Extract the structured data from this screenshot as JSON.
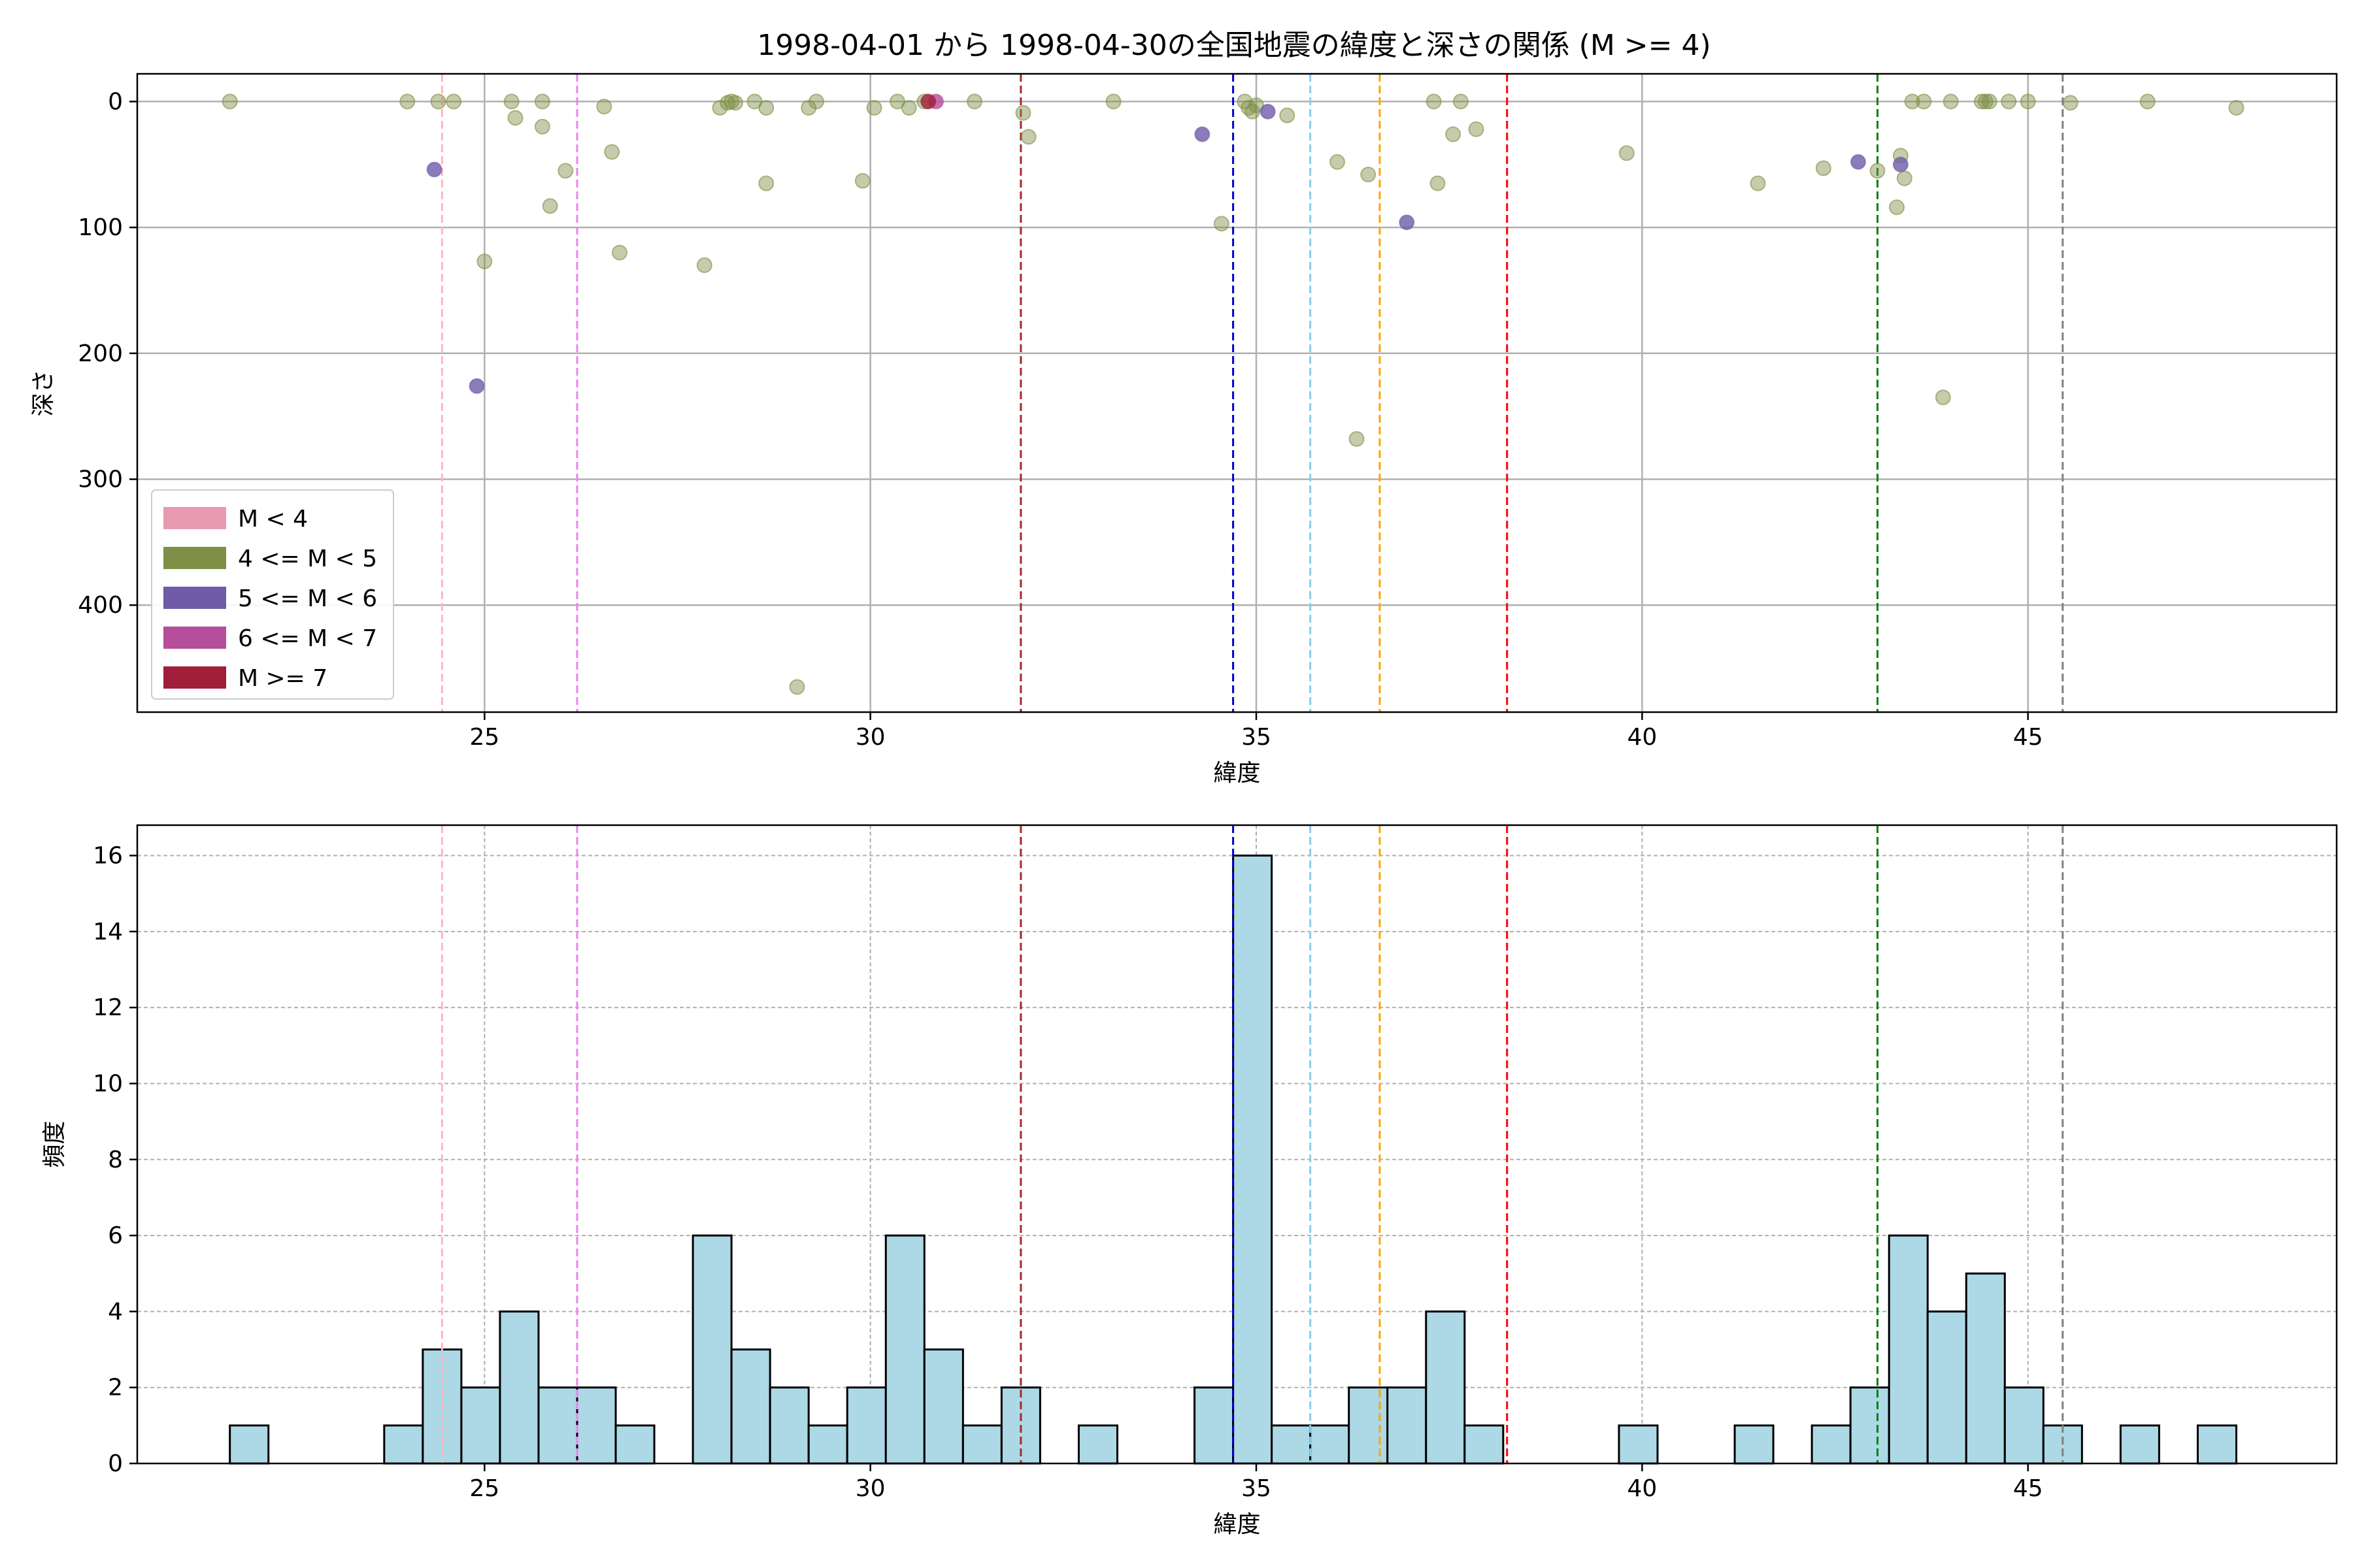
{
  "title": "1998-04-01 から 1998-04-30の全国地震の緯度と深さの関係 (M >= 4)",
  "colors": {
    "scatter_m4_5": "#7f8f45",
    "scatter_m5_6": "#6f5ba7",
    "scatter_m6_7": "#b54e9b",
    "scatter_m7": "#a01e3a",
    "hist_bar": "#add8e6",
    "vlines": [
      "#ffb6c1",
      "#ee82ee",
      "#a52a2a",
      "#0000cd",
      "#87ceeb",
      "#ffa500",
      "#ff0000",
      "#008000",
      "#808080"
    ]
  },
  "chart_data": [
    {
      "type": "scatter",
      "xlabel": "緯度",
      "ylabel": "深さ",
      "xlim": [
        20.5,
        49
      ],
      "ylim": [
        485,
        -22
      ],
      "y_inverted": true,
      "xticks": [
        25,
        30,
        35,
        40,
        45
      ],
      "yticks": [
        0,
        100,
        200,
        300,
        400
      ],
      "grid": true,
      "legend_position": "lower-left",
      "legend": [
        {
          "label": "M < 4",
          "color": "#e89ab0"
        },
        {
          "label": "4 <= M < 5",
          "color": "#7f8f45"
        },
        {
          "label": "5 <= M < 6",
          "color": "#6f5ba7"
        },
        {
          "label": "6 <= M < 7",
          "color": "#b54e9b"
        },
        {
          "label": "M >= 7",
          "color": "#a01e3a"
        }
      ],
      "vlines": [
        24.45,
        26.2,
        31.95,
        34.7,
        35.7,
        36.6,
        38.25,
        43.05,
        45.45
      ],
      "series": [
        {
          "class": "m4_5",
          "points": [
            [
              21.7,
              0
            ],
            [
              24.0,
              0
            ],
            [
              24.4,
              0
            ],
            [
              24.6,
              0
            ],
            [
              25.0,
              127
            ],
            [
              25.35,
              0
            ],
            [
              25.4,
              13
            ],
            [
              25.75,
              0
            ],
            [
              25.75,
              20
            ],
            [
              25.85,
              83
            ],
            [
              26.05,
              55
            ],
            [
              26.55,
              4
            ],
            [
              26.65,
              40
            ],
            [
              26.75,
              120
            ],
            [
              27.85,
              130
            ],
            [
              28.05,
              5
            ],
            [
              28.15,
              1
            ],
            [
              28.2,
              0
            ],
            [
              28.25,
              1
            ],
            [
              28.5,
              0
            ],
            [
              28.65,
              5
            ],
            [
              28.65,
              65
            ],
            [
              29.05,
              465
            ],
            [
              29.2,
              5
            ],
            [
              29.3,
              0
            ],
            [
              29.9,
              63
            ],
            [
              30.05,
              5
            ],
            [
              30.35,
              0
            ],
            [
              30.5,
              5
            ],
            [
              30.7,
              0
            ],
            [
              31.35,
              0
            ],
            [
              31.98,
              9
            ],
            [
              32.05,
              28
            ],
            [
              33.15,
              0
            ],
            [
              34.55,
              97
            ],
            [
              34.85,
              0
            ],
            [
              34.9,
              5
            ],
            [
              34.95,
              8
            ],
            [
              35.0,
              3
            ],
            [
              35.4,
              11
            ],
            [
              36.05,
              48
            ],
            [
              36.3,
              268
            ],
            [
              36.45,
              58
            ],
            [
              37.3,
              0
            ],
            [
              37.35,
              65
            ],
            [
              37.55,
              26
            ],
            [
              37.65,
              0
            ],
            [
              37.85,
              22
            ],
            [
              39.8,
              41
            ],
            [
              41.5,
              65
            ],
            [
              42.35,
              53
            ],
            [
              43.05,
              55
            ],
            [
              43.3,
              84
            ],
            [
              43.35,
              43
            ],
            [
              43.4,
              61
            ],
            [
              43.5,
              0
            ],
            [
              43.65,
              0
            ],
            [
              43.9,
              235
            ],
            [
              44.0,
              0
            ],
            [
              44.4,
              0
            ],
            [
              44.45,
              0
            ],
            [
              44.5,
              0
            ],
            [
              44.75,
              0
            ],
            [
              45.0,
              0
            ],
            [
              45.55,
              1
            ],
            [
              46.55,
              0
            ],
            [
              47.7,
              5
            ]
          ]
        },
        {
          "class": "m5_6",
          "points": [
            [
              24.35,
              54
            ],
            [
              24.9,
              226
            ],
            [
              34.3,
              26
            ],
            [
              35.15,
              8
            ],
            [
              36.95,
              96
            ],
            [
              42.8,
              48
            ],
            [
              43.35,
              50
            ]
          ]
        },
        {
          "class": "m6_7",
          "points": [
            [
              30.85,
              0
            ]
          ]
        },
        {
          "class": "m7",
          "points": [
            [
              30.75,
              0
            ]
          ]
        }
      ]
    },
    {
      "type": "bar",
      "xlabel": "緯度",
      "ylabel": "頻度",
      "xlim": [
        20.5,
        49
      ],
      "ylim": [
        0,
        16.8
      ],
      "xticks": [
        25,
        30,
        35,
        40,
        45
      ],
      "yticks": [
        0,
        2,
        4,
        6,
        8,
        10,
        12,
        14,
        16
      ],
      "grid": "dashed",
      "bin_start": 21.7,
      "bin_width": 0.5,
      "values": [
        1,
        0,
        0,
        0,
        1,
        3,
        2,
        4,
        2,
        2,
        1,
        0,
        6,
        3,
        2,
        1,
        2,
        6,
        3,
        1,
        2,
        0,
        1,
        0,
        0,
        2,
        16,
        1,
        1,
        2,
        2,
        4,
        1,
        0,
        0,
        0,
        1,
        0,
        0,
        1,
        0,
        1,
        2,
        6,
        4,
        5,
        2,
        1,
        0,
        1,
        0,
        1
      ],
      "vlines": [
        24.45,
        26.2,
        31.95,
        34.7,
        35.7,
        36.6,
        38.25,
        43.05,
        45.45
      ]
    }
  ]
}
